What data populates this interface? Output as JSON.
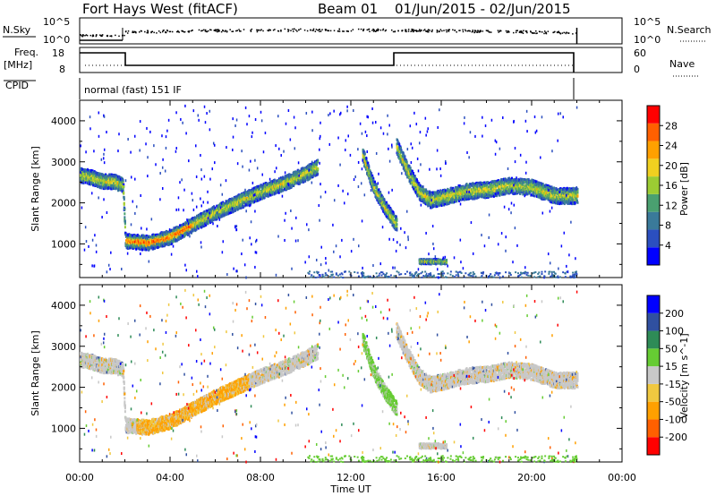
{
  "header": {
    "station": "Fort Hays West (fitACF)",
    "beam": "Beam 01",
    "date_range": "01/Jun/2015 - 02/Jun/2015"
  },
  "status_panels": {
    "nsky_label": "N.Sky",
    "nsearch_label": "N.Search",
    "nsky_ticks": [
      "10^5",
      "10^0"
    ],
    "nsearch_ticks": [
      "10^5",
      "10^0"
    ],
    "freq_label": "Freq.",
    "freq_unit": "[MHz]",
    "freq_ticks": [
      "18",
      "8"
    ],
    "nave_label": "Nave",
    "nave_ticks": [
      "60",
      "0"
    ],
    "cpid_label": "CPID",
    "cpid_text": "normal (fast) 151 IF"
  },
  "colors": {
    "axis": "#000000",
    "velocity_gray": "#c8c8c8"
  },
  "chart_data": [
    {
      "type": "heatmap",
      "title": "",
      "xlabel": "Time UT",
      "ylabel": "Slant Range [km]",
      "xlim": [
        0,
        24
      ],
      "ylim": [
        180,
        4500
      ],
      "x_ticks": [
        "00:00",
        "04:00",
        "08:00",
        "12:00",
        "16:00",
        "20:00",
        "00:00"
      ],
      "y_ticks": [
        "1000",
        "2000",
        "3000",
        "4000"
      ],
      "colorbar": {
        "label": "Power [dB]",
        "ticks": [
          "28",
          "24",
          "20",
          "16",
          "12",
          "8",
          "4"
        ],
        "colors": [
          "#0000ff",
          "#2b4fbf",
          "#3a7a9a",
          "#4aa070",
          "#9ccc33",
          "#f0d020",
          "#ffa000",
          "#ff6000",
          "#ff0000"
        ]
      },
      "bands": [
        {
          "t": [
            0.0,
            0.5,
            1.0,
            1.5,
            1.9,
            2.0,
            3.0,
            4.0,
            5.0,
            6.0,
            7.0,
            8.0,
            9.0,
            10.0,
            10.5
          ],
          "range": [
            2700,
            2650,
            2550,
            2550,
            2450,
            1100,
            1050,
            1200,
            1500,
            1800,
            2050,
            2300,
            2500,
            2750,
            2900
          ],
          "width": 350
        },
        {
          "t": [
            12.5,
            13.0,
            13.5,
            14.0
          ],
          "range": [
            3200,
            2400,
            1900,
            1500
          ],
          "width": 350
        },
        {
          "t": [
            14.0,
            14.5,
            15.0,
            15.5,
            16.0,
            17.0,
            18.0,
            19.0,
            20.0,
            21.0,
            22.0
          ],
          "range": [
            3400,
            2800,
            2300,
            2100,
            2150,
            2300,
            2350,
            2450,
            2400,
            2200,
            2200
          ],
          "width": 380
        },
        {
          "t": [
            15.0,
            16.2
          ],
          "range": [
            600,
            600
          ],
          "width": 120
        }
      ]
    },
    {
      "type": "heatmap",
      "title": "",
      "xlabel": "Time UT",
      "ylabel": "Slant Range [km]",
      "xlim": [
        0,
        24
      ],
      "ylim": [
        180,
        4500
      ],
      "x_ticks": [
        "00:00",
        "04:00",
        "08:00",
        "12:00",
        "16:00",
        "20:00",
        "00:00"
      ],
      "y_ticks": [
        "1000",
        "2000",
        "3000",
        "4000"
      ],
      "colorbar": {
        "label": "Velocity [m s^-1]",
        "ticks": [
          "200",
          "100",
          "50",
          "15",
          "-15",
          "-50",
          "-100",
          "-200"
        ],
        "colors": [
          "#ff0000",
          "#ff6000",
          "#ffa000",
          "#f0c840",
          "#c8c8c8",
          "#66cc33",
          "#2e8b57",
          "#3050a0",
          "#0000ff"
        ]
      },
      "dominant_velocity": "-15 to 15",
      "positive_region_hours": [
        12.5,
        14.0
      ],
      "negative_region_hours": [
        3.0,
        7.0
      ]
    }
  ]
}
